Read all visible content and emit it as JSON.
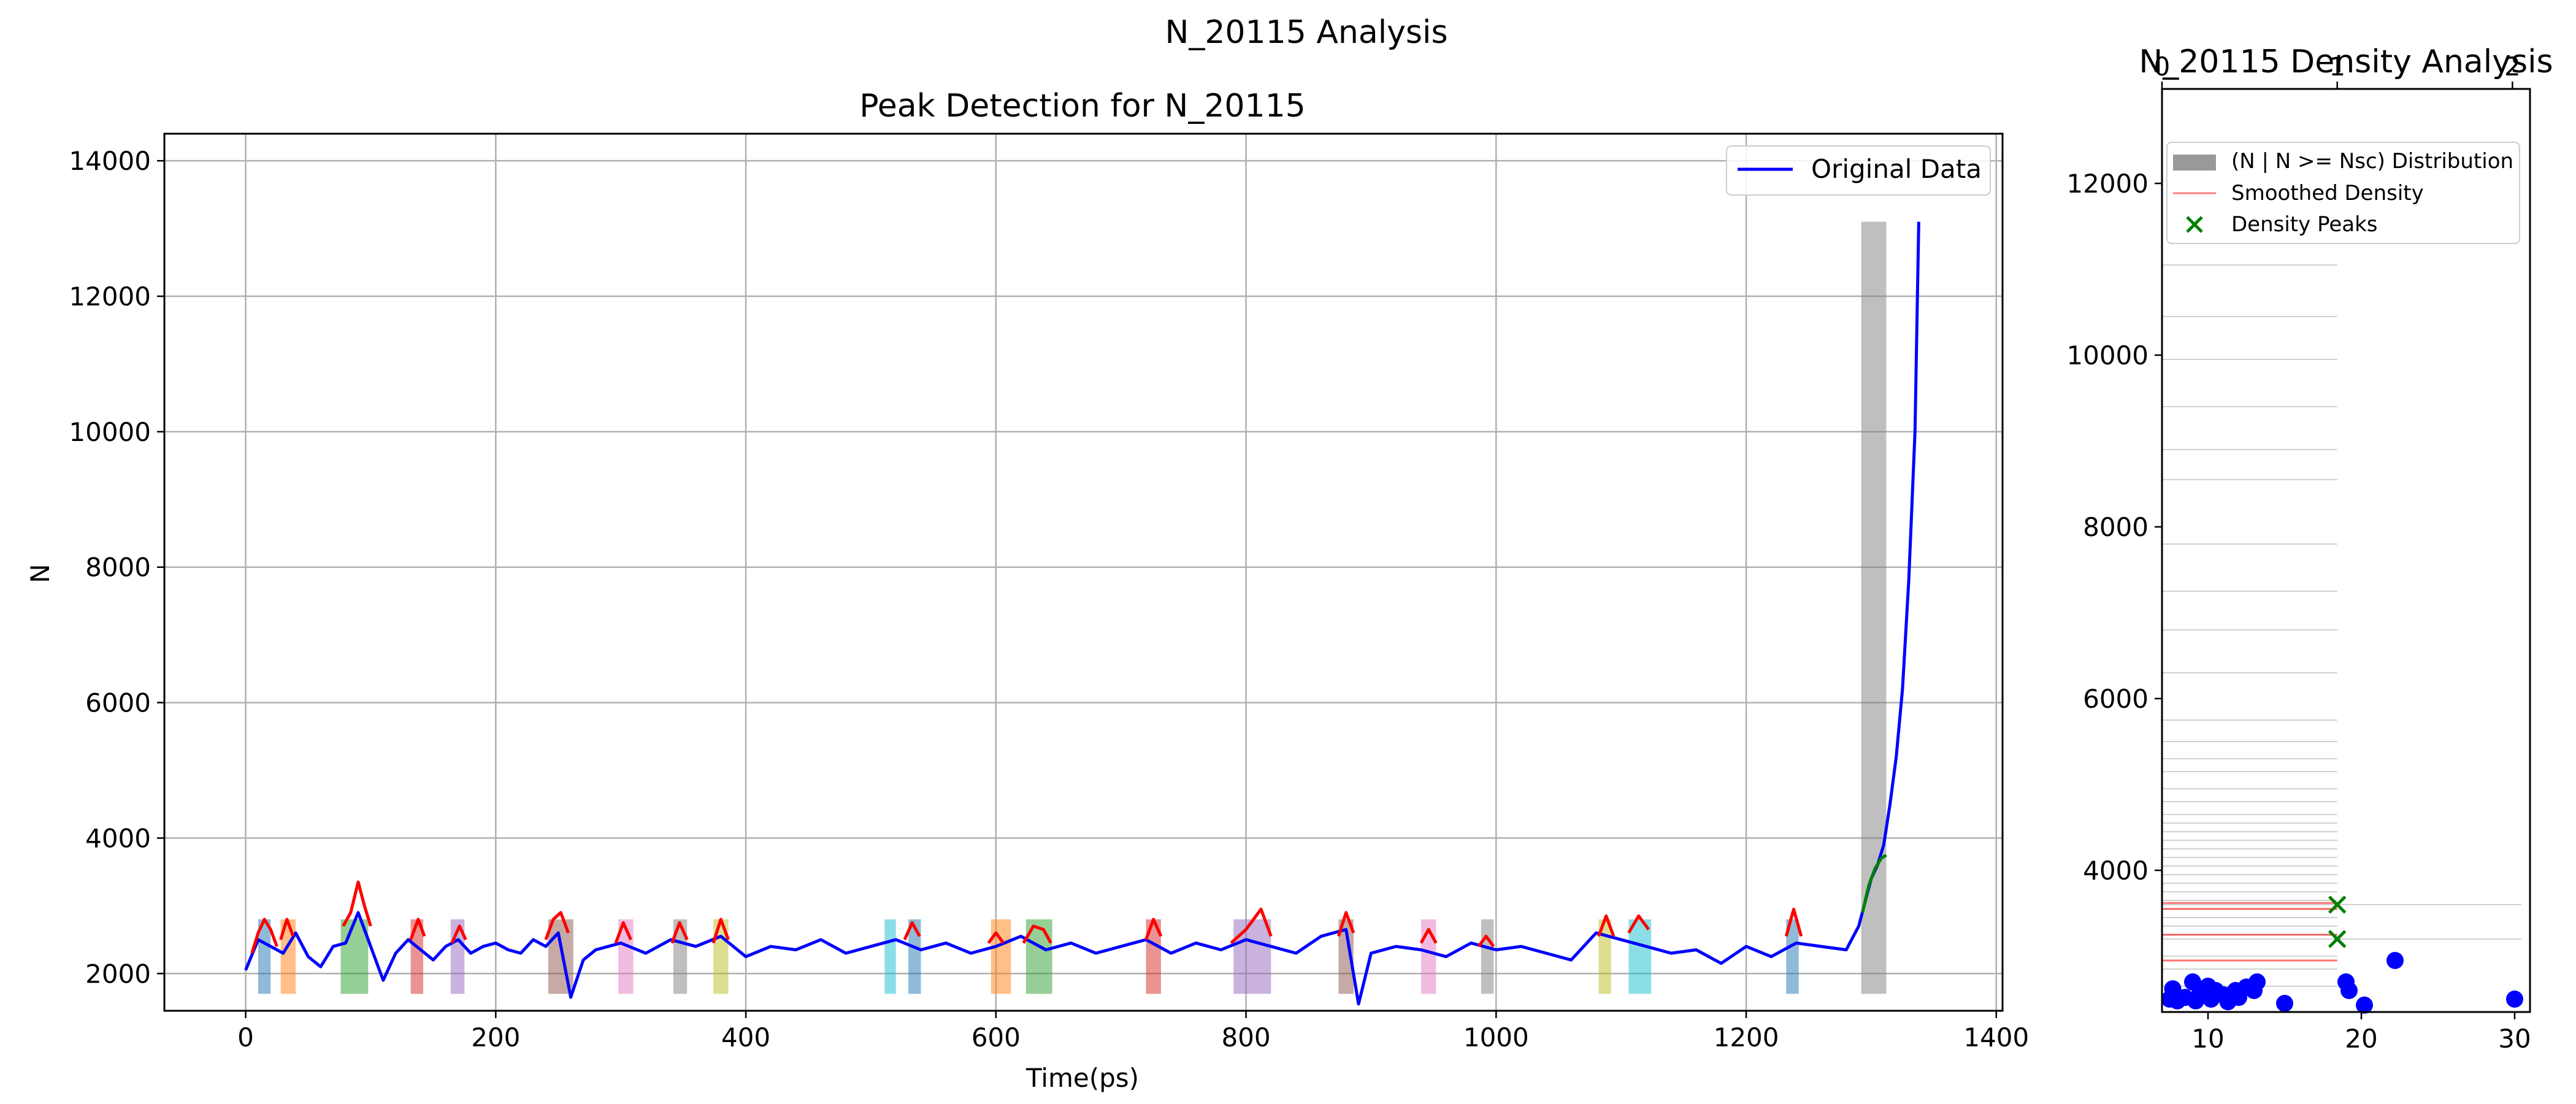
{
  "suptitle": "N_20115 Analysis",
  "chart_data": [
    {
      "type": "line",
      "title": "Peak Detection for N_20115",
      "xlabel": "Time(ps)",
      "ylabel": "N",
      "xlim": [
        -65,
        1405
      ],
      "ylim": [
        1450,
        14400
      ],
      "xticks": [
        0,
        200,
        400,
        600,
        800,
        1000,
        1200,
        1400
      ],
      "yticks": [
        2000,
        4000,
        6000,
        8000,
        10000,
        12000,
        14000
      ],
      "grid": true,
      "legend": {
        "position": "top-right",
        "entries": [
          "Original Data"
        ]
      },
      "series": [
        {
          "name": "Original Data",
          "color": "#0000ff",
          "x": [
            0,
            10,
            20,
            30,
            40,
            50,
            60,
            70,
            80,
            90,
            100,
            110,
            120,
            130,
            140,
            150,
            160,
            170,
            180,
            190,
            200,
            210,
            220,
            230,
            240,
            250,
            260,
            270,
            280,
            290,
            300,
            320,
            340,
            360,
            380,
            400,
            420,
            440,
            460,
            480,
            500,
            520,
            540,
            560,
            580,
            600,
            620,
            640,
            660,
            680,
            700,
            720,
            740,
            760,
            780,
            800,
            820,
            840,
            860,
            880,
            890,
            900,
            920,
            940,
            960,
            980,
            1000,
            1020,
            1040,
            1060,
            1080,
            1100,
            1120,
            1140,
            1160,
            1180,
            1200,
            1220,
            1240,
            1260,
            1280,
            1290,
            1300,
            1305,
            1310,
            1315,
            1320,
            1325,
            1330,
            1335,
            1338
          ],
          "y": [
            2050,
            2500,
            2400,
            2300,
            2600,
            2250,
            2100,
            2400,
            2450,
            2900,
            2400,
            1900,
            2300,
            2500,
            2350,
            2200,
            2400,
            2500,
            2300,
            2400,
            2450,
            2350,
            2300,
            2500,
            2400,
            2600,
            1650,
            2200,
            2350,
            2400,
            2450,
            2300,
            2500,
            2400,
            2550,
            2250,
            2400,
            2350,
            2500,
            2300,
            2400,
            2500,
            2350,
            2450,
            2300,
            2400,
            2550,
            2350,
            2450,
            2300,
            2400,
            2500,
            2300,
            2450,
            2350,
            2500,
            2400,
            2300,
            2550,
            2650,
            1550,
            2300,
            2400,
            2350,
            2250,
            2450,
            2350,
            2400,
            2300,
            2200,
            2600,
            2500,
            2400,
            2300,
            2350,
            2150,
            2400,
            2250,
            2450,
            2400,
            2350,
            2700,
            3400,
            3600,
            3900,
            4500,
            5200,
            6200,
            7800,
            10000,
            13100
          ]
        }
      ],
      "peak_overlays": [
        {
          "color": "#ff0000",
          "x": [
            5,
            10,
            15,
            20,
            25
          ],
          "y": [
            2300,
            2600,
            2800,
            2650,
            2400
          ]
        },
        {
          "color": "#ff0000",
          "x": [
            28,
            33,
            38
          ],
          "y": [
            2500,
            2800,
            2550
          ]
        },
        {
          "color": "#ff0000",
          "x": [
            78,
            84,
            90,
            95,
            100
          ],
          "y": [
            2700,
            2900,
            3350,
            3000,
            2700
          ]
        },
        {
          "color": "#ff0000",
          "x": [
            132,
            138,
            143
          ],
          "y": [
            2500,
            2800,
            2550
          ]
        },
        {
          "color": "#ff0000",
          "x": [
            165,
            171,
            176
          ],
          "y": [
            2450,
            2700,
            2500
          ]
        },
        {
          "color": "#ff0000",
          "x": [
            240,
            246,
            252,
            258
          ],
          "y": [
            2500,
            2800,
            2900,
            2600
          ]
        },
        {
          "color": "#ff0000",
          "x": [
            296,
            302,
            308
          ],
          "y": [
            2450,
            2750,
            2500
          ]
        },
        {
          "color": "#ff0000",
          "x": [
            341,
            347,
            353
          ],
          "y": [
            2450,
            2750,
            2500
          ]
        },
        {
          "color": "#ff0000",
          "x": [
            374,
            380,
            386
          ],
          "y": [
            2450,
            2800,
            2500
          ]
        },
        {
          "color": "#ff0000",
          "x": [
            527,
            533,
            539
          ],
          "y": [
            2500,
            2750,
            2550
          ]
        },
        {
          "color": "#ff0000",
          "x": [
            594,
            600,
            606
          ],
          "y": [
            2450,
            2600,
            2450
          ]
        },
        {
          "color": "#ff0000",
          "x": [
            622,
            630,
            638,
            644
          ],
          "y": [
            2450,
            2700,
            2650,
            2450
          ]
        },
        {
          "color": "#ff0000",
          "x": [
            720,
            726,
            732
          ],
          "y": [
            2500,
            2800,
            2550
          ]
        },
        {
          "color": "#ff0000",
          "x": [
            788,
            800,
            812,
            820
          ],
          "y": [
            2450,
            2650,
            2950,
            2550
          ]
        },
        {
          "color": "#ff0000",
          "x": [
            874,
            880,
            886
          ],
          "y": [
            2550,
            2900,
            2600
          ]
        },
        {
          "color": "#ff0000",
          "x": [
            940,
            946,
            952
          ],
          "y": [
            2450,
            2650,
            2450
          ]
        },
        {
          "color": "#ff0000",
          "x": [
            986,
            992,
            998
          ],
          "y": [
            2400,
            2550,
            2400
          ]
        },
        {
          "color": "#ff0000",
          "x": [
            1082,
            1088,
            1094
          ],
          "y": [
            2550,
            2850,
            2550
          ]
        },
        {
          "color": "#ff0000",
          "x": [
            1106,
            1114,
            1122
          ],
          "y": [
            2600,
            2850,
            2650
          ]
        },
        {
          "color": "#ff0000",
          "x": [
            1232,
            1238,
            1244
          ],
          "y": [
            2550,
            2950,
            2550
          ]
        },
        {
          "color": "#008000",
          "x": [
            1293,
            1298,
            1303,
            1308,
            1312
          ],
          "y": [
            2900,
            3300,
            3550,
            3700,
            3750
          ]
        }
      ],
      "peak_regions": [
        {
          "x0": 10,
          "x1": 20,
          "color": "#1f77b4"
        },
        {
          "x0": 28,
          "x1": 40,
          "color": "#ff7f0e"
        },
        {
          "x0": 76,
          "x1": 98,
          "color": "#2ca02c"
        },
        {
          "x0": 132,
          "x1": 142,
          "color": "#d62728"
        },
        {
          "x0": 164,
          "x1": 175,
          "color": "#9467bd"
        },
        {
          "x0": 242,
          "x1": 262,
          "color": "#8c564b"
        },
        {
          "x0": 298,
          "x1": 310,
          "color": "#e377c2"
        },
        {
          "x0": 342,
          "x1": 353,
          "color": "#7f7f7f"
        },
        {
          "x0": 374,
          "x1": 386,
          "color": "#bcbd22"
        },
        {
          "x0": 511,
          "x1": 520,
          "color": "#17becf"
        },
        {
          "x0": 530,
          "x1": 540,
          "color": "#1f77b4"
        },
        {
          "x0": 596,
          "x1": 612,
          "color": "#ff7f0e"
        },
        {
          "x0": 624,
          "x1": 645,
          "color": "#2ca02c"
        },
        {
          "x0": 720,
          "x1": 732,
          "color": "#d62728"
        },
        {
          "x0": 790,
          "x1": 820,
          "color": "#9467bd"
        },
        {
          "x0": 874,
          "x1": 886,
          "color": "#8c564b"
        },
        {
          "x0": 940,
          "x1": 952,
          "color": "#e377c2"
        },
        {
          "x0": 988,
          "x1": 998,
          "color": "#7f7f7f"
        },
        {
          "x0": 1082,
          "x1": 1092,
          "color": "#bcbd22"
        },
        {
          "x0": 1106,
          "x1": 1124,
          "color": "#17becf"
        },
        {
          "x0": 1232,
          "x1": 1242,
          "color": "#1f77b4"
        },
        {
          "x0": 1292,
          "x1": 1312,
          "color": "#7f7f7f"
        }
      ]
    },
    {
      "type": "scatter",
      "title": "N_20115 Density Analysis",
      "ylim": [
        2350,
        13100
      ],
      "yticks": [
        4000,
        6000,
        8000,
        10000,
        12000
      ],
      "top_axis": {
        "label": "",
        "lim": [
          0,
          2.1
        ],
        "ticks": [
          0,
          1,
          2
        ]
      },
      "bottom_axis": {
        "label": "",
        "lim": [
          7,
          31
        ],
        "ticks": [
          10,
          20,
          30
        ]
      },
      "legend": {
        "position": "top-left",
        "entries": [
          "(N | N >= Nsc) Distribution",
          "Smoothed Density",
          "Density Peaks"
        ]
      },
      "distribution_lines": {
        "color": "#999999",
        "y": [
          2650,
          2850,
          3000,
          3250,
          3350,
          3450,
          3550,
          3650,
          3750,
          3850,
          3950,
          4050,
          4150,
          4250,
          4350,
          4450,
          4550,
          4650,
          4800,
          4950,
          5150,
          5300,
          5500,
          5750,
          6300,
          6800,
          7250,
          7800,
          8550,
          8900,
          9400,
          9950,
          10450,
          11050
        ],
        "widths": [
          1.0,
          1.0,
          1.0,
          1.0,
          1.0,
          1.0,
          1.0,
          1.0,
          1.0,
          1.0,
          1.0,
          1.0,
          1.0,
          1.0,
          1.0,
          1.0,
          1.0,
          1.0,
          1.0,
          1.0,
          1.0,
          1.0,
          1.0,
          1.0,
          1.0,
          1.0,
          1.0,
          1.0,
          1.0,
          1.0,
          1.0,
          1.0,
          1.0,
          1.0
        ],
        "extended": [
          {
            "y": 3600,
            "width": 2.05
          },
          {
            "y": 3200,
            "width": 2.05
          }
        ]
      },
      "smoothed_density": {
        "color": "#ff0000",
        "y": [
          2950,
          3250,
          3550,
          3620
        ],
        "width": 1.0
      },
      "density_peaks": {
        "color": "#008000",
        "points": [
          {
            "x": 1.0,
            "y": 3600
          },
          {
            "x": 1.0,
            "y": 3200
          }
        ]
      },
      "scatter_points": {
        "color": "#0000ff",
        "points": [
          {
            "x": 7.5,
            "y": 2500
          },
          {
            "x": 7.7,
            "y": 2620
          },
          {
            "x": 8.0,
            "y": 2480
          },
          {
            "x": 8.5,
            "y": 2520
          },
          {
            "x": 9.0,
            "y": 2700
          },
          {
            "x": 9.2,
            "y": 2480
          },
          {
            "x": 9.5,
            "y": 2600
          },
          {
            "x": 10.0,
            "y": 2650
          },
          {
            "x": 10.2,
            "y": 2500
          },
          {
            "x": 10.5,
            "y": 2600
          },
          {
            "x": 11.0,
            "y": 2550
          },
          {
            "x": 11.3,
            "y": 2470
          },
          {
            "x": 11.8,
            "y": 2600
          },
          {
            "x": 12.0,
            "y": 2520
          },
          {
            "x": 12.5,
            "y": 2640
          },
          {
            "x": 13.0,
            "y": 2600
          },
          {
            "x": 13.2,
            "y": 2700
          },
          {
            "x": 15.0,
            "y": 2450
          },
          {
            "x": 19.0,
            "y": 2700
          },
          {
            "x": 19.2,
            "y": 2600
          },
          {
            "x": 20.2,
            "y": 2430
          },
          {
            "x": 22.2,
            "y": 2950
          },
          {
            "x": 30.0,
            "y": 2500
          }
        ]
      }
    }
  ]
}
